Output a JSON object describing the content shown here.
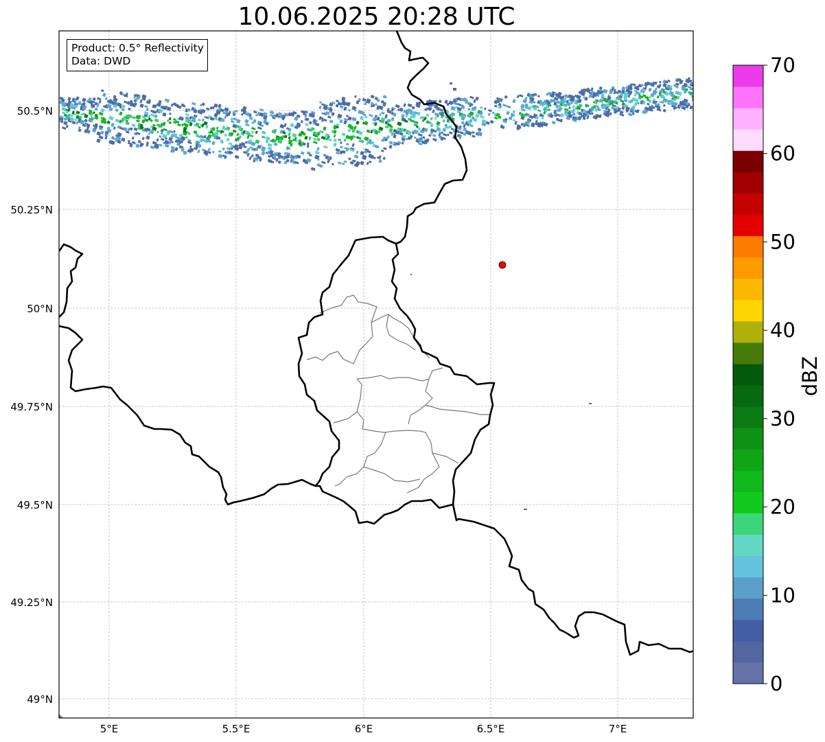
{
  "title": "10.06.2025 20:28 UTC",
  "info": {
    "product_label": "Product: 0.5° Reflectivity",
    "data_label": "Data: DWD"
  },
  "axes": {
    "lon_ticks": [
      "5°E",
      "5.5°E",
      "6°E",
      "6.5°E",
      "7°E"
    ],
    "lat_ticks": [
      "50.5°N",
      "50.25°N",
      "50°N",
      "49.75°N",
      "49.5°N",
      "49.25°N",
      "49°N"
    ],
    "grid": "dashed-light"
  },
  "colorbar": {
    "label": "dBZ",
    "ticks": [
      "0",
      "10",
      "20",
      "30",
      "40",
      "50",
      "60",
      "70"
    ],
    "colors": [
      "#6572a8",
      "#53669f",
      "#435ea4",
      "#4c7cb5",
      "#5b9fcb",
      "#64c3dc",
      "#64d8c5",
      "#3ed67a",
      "#14c91d",
      "#0fb91b",
      "#10a515",
      "#0e9215",
      "#0b7b13",
      "#086a10",
      "#045a0a",
      "#467b08",
      "#b0b00b",
      "#fdd500",
      "#fcb800",
      "#fd9b00",
      "#fd7c00",
      "#e40000",
      "#c50000",
      "#a10000",
      "#7b0000",
      "#ffdcff",
      "#ffb2ff",
      "#ff74fb",
      "#eb3cec"
    ]
  },
  "radar_site_color": "#ff0000",
  "reflectivity_colors": {
    "low": "#4d6ca8",
    "mid": "#5ba7cf",
    "cyan": "#5fcfd0",
    "light_green": "#36c66a",
    "green": "#14b51d",
    "dark_green": "#0b7a13"
  }
}
